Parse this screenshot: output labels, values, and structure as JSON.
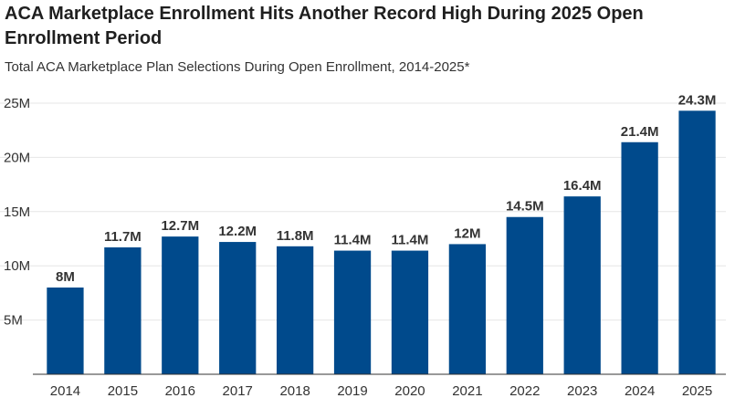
{
  "header": {
    "title": "ACA Marketplace Enrollment Hits Another Record High During 2025 Open Enrollment Period",
    "subtitle": "Total ACA Marketplace Plan Selections During Open Enrollment, 2014-2025*"
  },
  "colors": {
    "bar": "#004a8c",
    "grid": "#e6e6e6",
    "axis": "#333333"
  },
  "chart_data": {
    "type": "bar",
    "title": "ACA Marketplace Enrollment Hits Another Record High During 2025 Open Enrollment Period",
    "subtitle": "Total ACA Marketplace Plan Selections During Open Enrollment, 2014-2025*",
    "xlabel": "",
    "ylabel": "",
    "categories": [
      "2014",
      "2015",
      "2016",
      "2017",
      "2018",
      "2019",
      "2020",
      "2021",
      "2022",
      "2023",
      "2024",
      "2025"
    ],
    "values": [
      8,
      11.7,
      12.7,
      12.2,
      11.8,
      11.4,
      11.4,
      12,
      14.5,
      16.4,
      21.4,
      24.3
    ],
    "value_labels": [
      "8M",
      "11.7M",
      "12.7M",
      "12.2M",
      "11.8M",
      "11.4M",
      "11.4M",
      "12M",
      "14.5M",
      "16.4M",
      "21.4M",
      "24.3M"
    ],
    "ylim": [
      0,
      25
    ],
    "yticks": [
      5,
      10,
      15,
      20,
      25
    ],
    "ytick_labels": [
      "5M",
      "10M",
      "15M",
      "20M",
      "25M"
    ],
    "grid": true,
    "legend": "none"
  }
}
